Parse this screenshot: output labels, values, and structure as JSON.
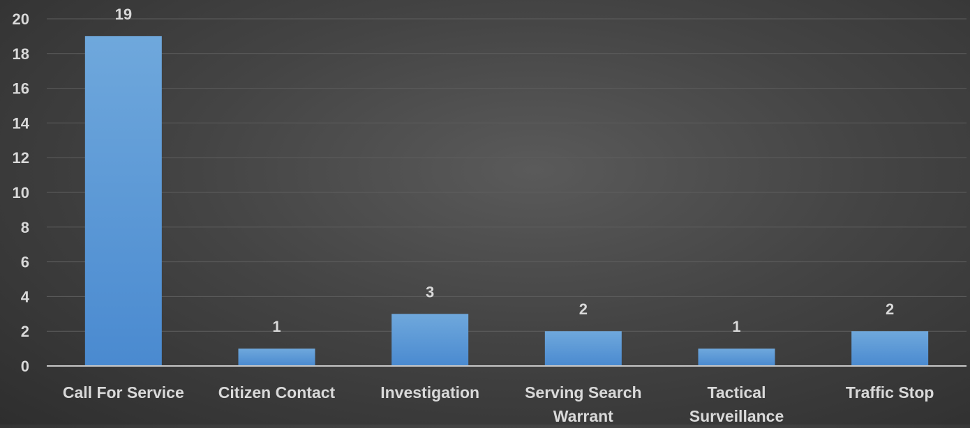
{
  "chart_data": {
    "type": "bar",
    "categories": [
      [
        "Call For Service"
      ],
      [
        "Citizen Contact"
      ],
      [
        "Investigation"
      ],
      [
        "Serving Search",
        "Warrant"
      ],
      [
        "Tactical",
        "Surveillance"
      ],
      [
        "Traffic Stop"
      ]
    ],
    "values": [
      19,
      1,
      3,
      2,
      1,
      2
    ],
    "ylim": [
      0,
      20
    ],
    "yticks": [
      0,
      2,
      4,
      6,
      8,
      10,
      12,
      14,
      16,
      18,
      20
    ],
    "grid": true,
    "data_labels": true,
    "legend": "none",
    "bar_color": "#5b9bd5",
    "bar_color_light": "#6fa8dc",
    "bar_color_dark": "#4a8ad0",
    "text_color": "#d9d9d9",
    "grid_color": "#5e5e5e",
    "axis_color": "#c8c8c8"
  }
}
